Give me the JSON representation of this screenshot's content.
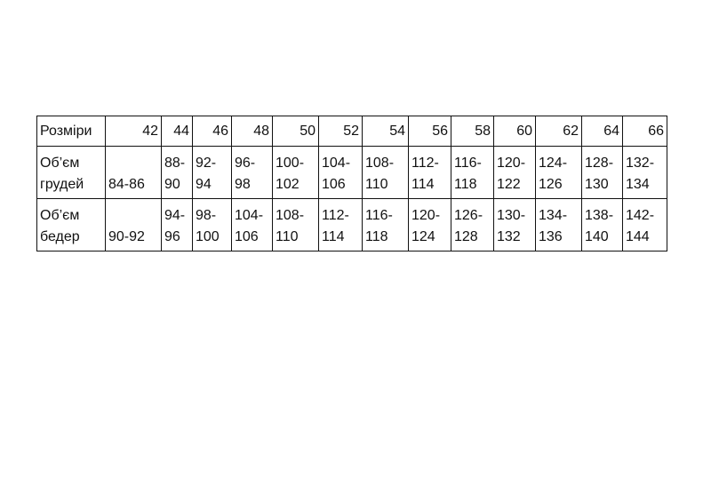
{
  "table": {
    "header": [
      "Розміри",
      "42",
      "44",
      "46",
      "48",
      "50",
      "52",
      "54",
      "56",
      "58",
      "60",
      "62",
      "64",
      "66"
    ],
    "rows": [
      [
        "Об’єм грудей",
        "84-86",
        "88-90",
        "92-94",
        "96-98",
        "100-102",
        "104-106",
        "108-110",
        "112-114",
        "116-118",
        "120-122",
        "124-126",
        "128-130",
        "132-134"
      ],
      [
        "Об’єм бедер",
        "90-92",
        "94-96",
        "98-100",
        "104-106",
        "108-110",
        "112-114",
        "116-118",
        "120-124",
        "126-128",
        "130-132",
        "134-136",
        "138-140",
        "142-144"
      ]
    ]
  }
}
